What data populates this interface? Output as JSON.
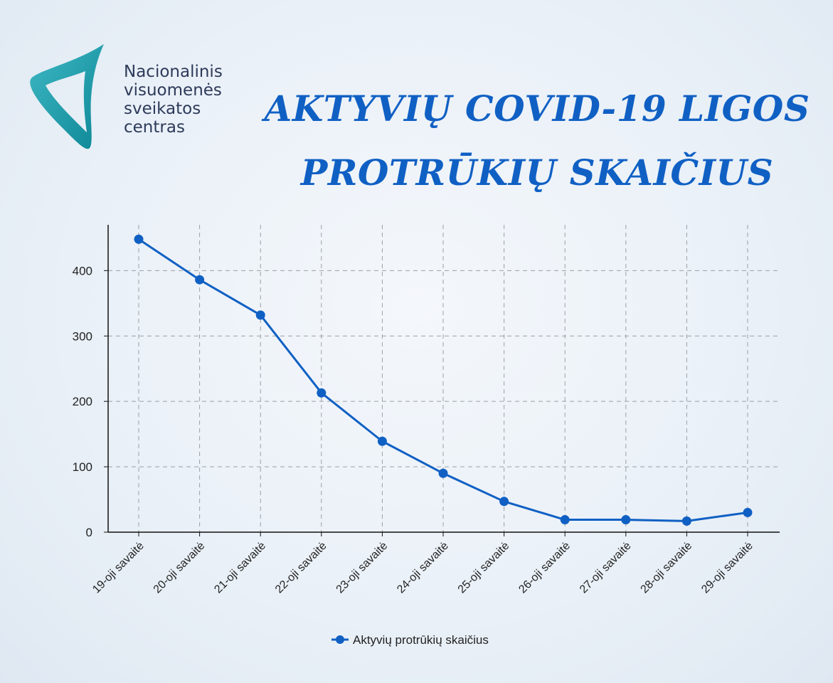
{
  "logo": {
    "lines": [
      "Nacionalinis",
      "visuomenės",
      "sveikatos",
      "centras"
    ],
    "colors": [
      "#2aa8b6",
      "#0a7f8c"
    ]
  },
  "title_lines": [
    "AKTYVIŲ COVID-19 LIGOS",
    "PROTRŪKIŲ SKAIČIUS"
  ],
  "chart_data": {
    "type": "line",
    "categories": [
      "19-oji savaitė",
      "20-oji savaitė",
      "21-oji savaitė",
      "22-oji savaitė",
      "23-oji savaitė",
      "24-oji savaitė",
      "25-oji savaitė",
      "26-oji savaitė",
      "27-oji savaitė",
      "28-oji savaitė",
      "29-oji savaitė"
    ],
    "series": [
      {
        "name": "Aktyvių protrūkių skaičius",
        "values": [
          448,
          386,
          332,
          213,
          139,
          90,
          47,
          19,
          19,
          17,
          30
        ],
        "color": "#1060c4"
      }
    ],
    "yticks": [
      0,
      100,
      200,
      300,
      400
    ],
    "ylim": [
      0,
      470
    ],
    "grid": true,
    "legend_position": "bottom-center"
  }
}
